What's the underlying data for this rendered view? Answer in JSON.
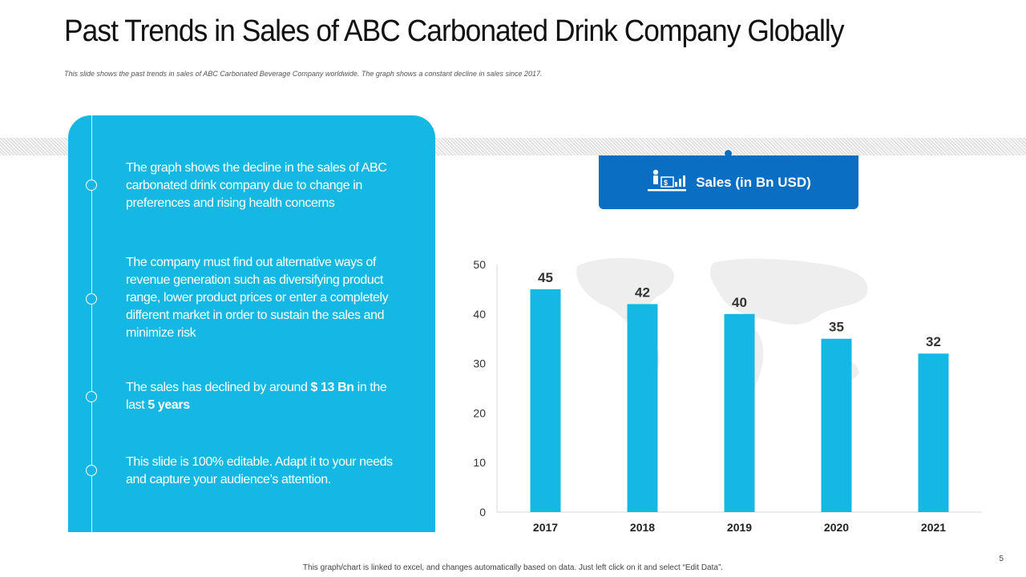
{
  "title": "Past Trends in Sales of ABC Carbonated Drink Company Globally",
  "subtitle": "This slide shows the past trends in sales of ABC Carbonated  Beverage  Company  worldwide.  The  graph  shows  a constant  decline  in sales  since  2017.",
  "points": [
    {
      "text": "The graph shows the decline in the sales of ABC carbonated drink company due to change in preferences and rising health concerns"
    },
    {
      "text": "The company must find out alternative ways of revenue generation such as diversifying product range, lower product prices or enter a completely different market in order to sustain the sales and minimize risk"
    },
    {
      "text_before": "The sales has declined by around ",
      "amount": "$ 13 Bn",
      "text_middle": " in the last ",
      "period": "5 years"
    },
    {
      "text": "This slide is 100% editable. Adapt it to your needs and capture your audience’s attention."
    }
  ],
  "legend": {
    "label": "Sales (in Bn USD)",
    "icon": "presenter-chart-icon"
  },
  "footer": "This graph/chart is linked to excel, and changes automatically  based on data. Just left click  on it and select  “Edit Data”.",
  "page_number": "5",
  "colors": {
    "panel": "#14b8e3",
    "bar": "#14b8e3",
    "legend": "#0a6fc2"
  },
  "chart_data": {
    "type": "bar",
    "title": "",
    "categories": [
      "2017",
      "2018",
      "2019",
      "2020",
      "2021"
    ],
    "series": [
      {
        "name": "Sales (in Bn USD)",
        "values": [
          45,
          42,
          40,
          35,
          32
        ]
      }
    ],
    "xlabel": "",
    "ylabel": "",
    "ylim": [
      0,
      50
    ],
    "yticks": [
      0,
      10,
      20,
      30,
      40,
      50
    ],
    "grid": false,
    "data_labels": true
  }
}
